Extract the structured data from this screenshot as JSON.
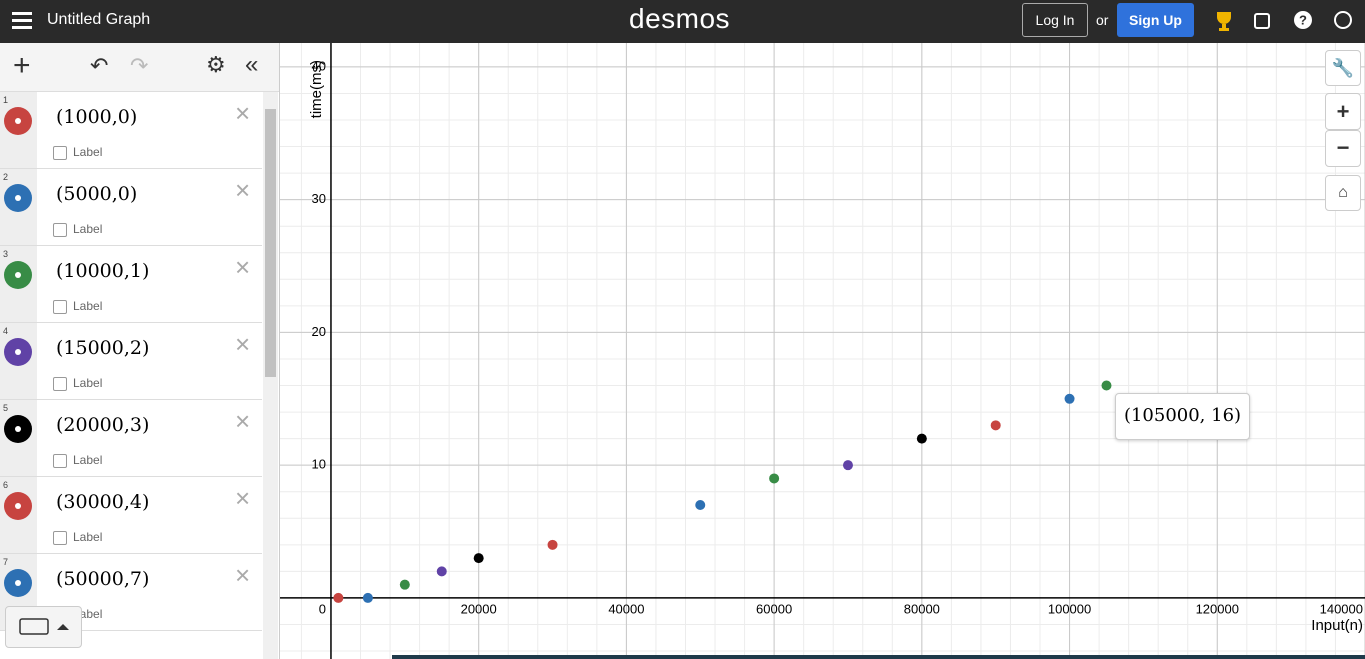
{
  "header": {
    "title": "Untitled Graph",
    "logo": "desmos",
    "login": "Log In",
    "or": "or",
    "signup": "Sign Up"
  },
  "expressions": [
    {
      "number": "1",
      "text": "(1000,0)",
      "checkbox": "Label",
      "color": "#c74440"
    },
    {
      "number": "2",
      "text": "(5000,0)",
      "checkbox": "Label",
      "color": "#2d70b3"
    },
    {
      "number": "3",
      "text": "(10000,1)",
      "checkbox": "Label",
      "color": "#388c46"
    },
    {
      "number": "4",
      "text": "(15000,2)",
      "checkbox": "Label",
      "color": "#6042a6"
    },
    {
      "number": "5",
      "text": "(20000,3)",
      "checkbox": "Label",
      "color": "#000000"
    },
    {
      "number": "6",
      "text": "(30000,4)",
      "checkbox": "Label",
      "color": "#c74440"
    },
    {
      "number": "7",
      "text": "(50000,7)",
      "checkbox": "Label",
      "color": "#2d70b3"
    }
  ],
  "chart_data": {
    "type": "scatter",
    "xlabel": "Input(n)",
    "ylabel": "time(ms)",
    "x": [
      1000,
      5000,
      10000,
      15000,
      20000,
      30000,
      50000,
      60000,
      70000,
      80000,
      90000,
      100000,
      105000
    ],
    "values": [
      0,
      0,
      1,
      2,
      3,
      4,
      7,
      9,
      10,
      12,
      13,
      15,
      16
    ],
    "point_colors": [
      "#c74440",
      "#2d70b3",
      "#388c46",
      "#6042a6",
      "#000000",
      "#c74440",
      "#2d70b3",
      "#388c46",
      "#6042a6",
      "#000000",
      "#c74440",
      "#2d70b3",
      "#388c46"
    ],
    "xlim": [
      -6900,
      140000
    ],
    "ylim": [
      -4.6,
      41.8
    ],
    "xticks": [
      0,
      20000,
      40000,
      60000,
      80000,
      100000,
      120000,
      140000
    ],
    "yticks": [
      10,
      20,
      30,
      40
    ],
    "grid": true,
    "tooltip": "(105000, 16)"
  }
}
